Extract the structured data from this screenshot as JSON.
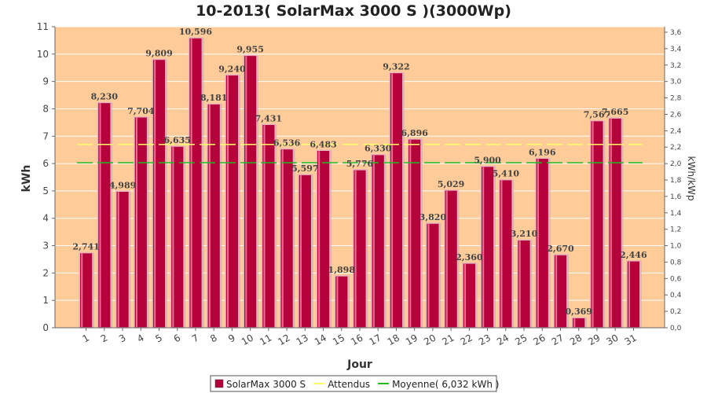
{
  "chart_data": {
    "type": "bar",
    "title": "10-2013( SolarMax 3000 S )(3000Wp)",
    "xlabel": "Jour",
    "ylabel": "kWh",
    "ylabel_right": "kWh/kWp",
    "categories": [
      "1",
      "2",
      "3",
      "4",
      "5",
      "6",
      "7",
      "8",
      "9",
      "10",
      "11",
      "12",
      "13",
      "14",
      "15",
      "16",
      "17",
      "18",
      "19",
      "20",
      "21",
      "22",
      "23",
      "24",
      "25",
      "26",
      "27",
      "28",
      "29",
      "30",
      "31"
    ],
    "series": [
      {
        "name": "SolarMax 3000 S",
        "color": "#b5023a",
        "values": [
          2.741,
          8.23,
          4.989,
          7.704,
          9.809,
          6.635,
          10.596,
          8.181,
          9.24,
          9.955,
          7.431,
          6.536,
          5.597,
          6.483,
          1.898,
          5.776,
          6.33,
          9.322,
          6.896,
          3.82,
          5.029,
          2.36,
          5.9,
          5.41,
          3.21,
          6.196,
          2.67,
          0.369,
          7.567,
          7.665,
          2.446
        ],
        "labels": [
          "2,741",
          "8,230",
          "4,989",
          "7,704",
          "9,809",
          "6,635",
          "10,596",
          "8,181",
          "9,240",
          "9,955",
          "7,431",
          "6,536",
          "5,597",
          "6,483",
          "1,898",
          "5,776",
          "6,330",
          "9,322",
          "6,896",
          "3,820",
          "5,029",
          "2,360",
          "5,900",
          "5,410",
          "3,210",
          "6,196",
          "2,670",
          "0,369",
          "7,567",
          "7,665",
          "2,446"
        ]
      }
    ],
    "lines": [
      {
        "name": "Attendus",
        "value": 6.7,
        "color": "#ffff66",
        "style": "dashed"
      },
      {
        "name": "Moyenne( 6,032 kWh )",
        "value": 6.032,
        "color": "#22bb22",
        "style": "dashed"
      }
    ],
    "ylim": [
      0,
      11
    ],
    "yticks": [
      "0",
      "1",
      "2",
      "3",
      "4",
      "5",
      "6",
      "7",
      "8",
      "9",
      "10",
      "11"
    ],
    "ylim_right": [
      0,
      3.667
    ],
    "yticks_right": [
      "0,0",
      "0,2",
      "0,4",
      "0,6",
      "0,8",
      "1,0",
      "1,2",
      "1,4",
      "1,6",
      "1,8",
      "2,0",
      "2,2",
      "2,4",
      "2,6",
      "2,8",
      "3,0",
      "3,2",
      "3,4",
      "3,6"
    ],
    "plot_background": "#ffcc99",
    "grid": true,
    "legend_position": "bottom",
    "legend": [
      {
        "label": "SolarMax 3000 S",
        "kind": "box",
        "color": "#b5023a"
      },
      {
        "label": "Attendus",
        "kind": "line",
        "color": "#ffff66"
      },
      {
        "label": "Moyenne( 6,032 kWh )",
        "kind": "line",
        "color": "#22bb22"
      }
    ]
  }
}
